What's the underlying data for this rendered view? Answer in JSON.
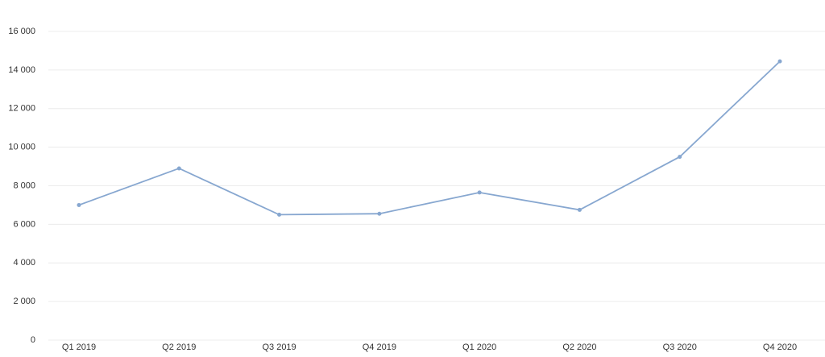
{
  "chart_data": {
    "type": "line",
    "categories": [
      "Q1 2019",
      "Q2 2019",
      "Q3 2019",
      "Q4 2019",
      "Q1 2020",
      "Q2 2020",
      "Q3 2020",
      "Q4 2020"
    ],
    "series": [
      {
        "color": "#87a7d0",
        "values": [
          7000,
          8900,
          6500,
          6550,
          7650,
          6750,
          9500,
          14450
        ]
      }
    ],
    "ylim": [
      0,
      16000
    ],
    "yticks": [
      0,
      {
        "value": 2000,
        "label": "2 000"
      },
      {
        "value": 4000,
        "label": "4 000"
      },
      {
        "value": 6000,
        "label": "6 000"
      },
      {
        "value": 8000,
        "label": "8 000"
      },
      {
        "value": 10000,
        "label": "10 000"
      },
      {
        "value": 12000,
        "label": "12 000"
      },
      {
        "value": 14000,
        "label": "14 000"
      },
      {
        "value": 16000,
        "label": "16 000"
      }
    ],
    "grid": true
  }
}
